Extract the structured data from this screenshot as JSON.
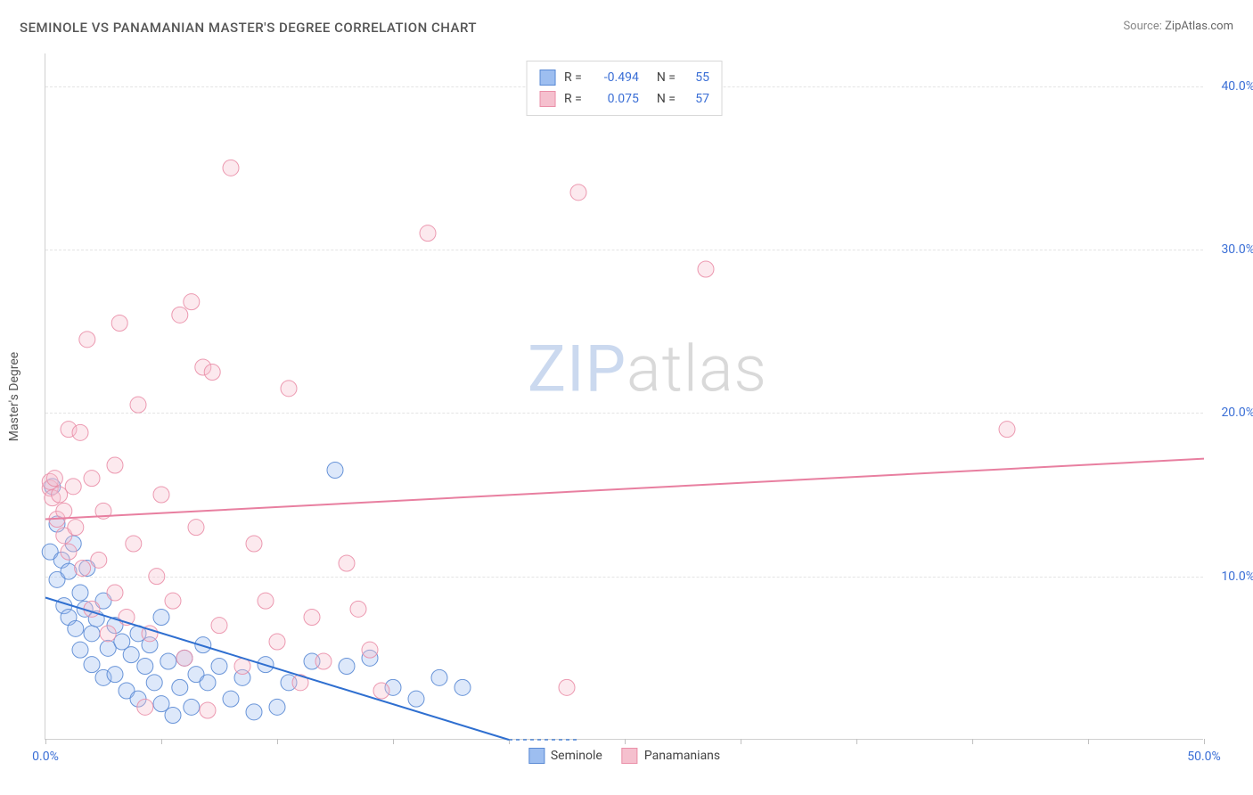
{
  "title": "SEMINOLE VS PANAMANIAN MASTER'S DEGREE CORRELATION CHART",
  "source_label": "Source:",
  "source_value": "ZipAtlas.com",
  "ylabel": "Master's Degree",
  "watermark_p1": "ZIP",
  "watermark_p2": "atlas",
  "chart": {
    "type": "scatter",
    "xlim": [
      0,
      50
    ],
    "ylim": [
      0,
      42
    ],
    "xtick_positions": [
      0,
      5,
      10,
      15,
      20,
      25,
      30,
      35,
      40,
      45,
      50
    ],
    "xtick_labels_visible": {
      "0": "0.0%",
      "50": "50.0%"
    },
    "ytick_positions": [
      10,
      20,
      30,
      40
    ],
    "ytick_labels": [
      "10.0%",
      "20.0%",
      "30.0%",
      "40.0%"
    ],
    "grid_color": "#e4e4e4",
    "axis_color": "#d0d0d0",
    "background_color": "#ffffff",
    "tick_label_color": "#3b6fd6",
    "marker_radius": 9,
    "marker_fill_opacity": 0.35,
    "marker_stroke_opacity": 0.9,
    "line_width": 2,
    "series": [
      {
        "name": "Seminole",
        "color_fill": "#9dbef0",
        "color_stroke": "#5a8ad4",
        "line_color": "#2f6fd0",
        "R": "-0.494",
        "N": "55",
        "trend": {
          "x1": 0,
          "y1": 8.7,
          "x2": 20,
          "y2": 0,
          "dash_extend_to_x": 23
        },
        "points": [
          [
            0.2,
            11.5
          ],
          [
            0.3,
            15.5
          ],
          [
            0.5,
            13.2
          ],
          [
            0.5,
            9.8
          ],
          [
            0.7,
            11.0
          ],
          [
            0.8,
            8.2
          ],
          [
            1.0,
            10.3
          ],
          [
            1.0,
            7.5
          ],
          [
            1.2,
            12.0
          ],
          [
            1.3,
            6.8
          ],
          [
            1.5,
            9.0
          ],
          [
            1.5,
            5.5
          ],
          [
            1.7,
            8.0
          ],
          [
            1.8,
            10.5
          ],
          [
            2.0,
            6.5
          ],
          [
            2.0,
            4.6
          ],
          [
            2.2,
            7.4
          ],
          [
            2.5,
            8.5
          ],
          [
            2.5,
            3.8
          ],
          [
            2.7,
            5.6
          ],
          [
            3.0,
            7.0
          ],
          [
            3.0,
            4.0
          ],
          [
            3.3,
            6.0
          ],
          [
            3.5,
            3.0
          ],
          [
            3.7,
            5.2
          ],
          [
            4.0,
            6.5
          ],
          [
            4.0,
            2.5
          ],
          [
            4.3,
            4.5
          ],
          [
            4.5,
            5.8
          ],
          [
            4.7,
            3.5
          ],
          [
            5.0,
            7.5
          ],
          [
            5.0,
            2.2
          ],
          [
            5.3,
            4.8
          ],
          [
            5.5,
            1.5
          ],
          [
            5.8,
            3.2
          ],
          [
            6.0,
            5.0
          ],
          [
            6.3,
            2.0
          ],
          [
            6.5,
            4.0
          ],
          [
            6.8,
            5.8
          ],
          [
            7.0,
            3.5
          ],
          [
            7.5,
            4.5
          ],
          [
            8.0,
            2.5
          ],
          [
            8.5,
            3.8
          ],
          [
            9.0,
            1.7
          ],
          [
            9.5,
            4.6
          ],
          [
            10.0,
            2.0
          ],
          [
            10.5,
            3.5
          ],
          [
            11.5,
            4.8
          ],
          [
            12.5,
            16.5
          ],
          [
            13.0,
            4.5
          ],
          [
            14.0,
            5.0
          ],
          [
            15.0,
            3.2
          ],
          [
            16.0,
            2.5
          ],
          [
            17.0,
            3.8
          ],
          [
            18.0,
            3.2
          ]
        ]
      },
      {
        "name": "Panamanians",
        "color_fill": "#f5c0ce",
        "color_stroke": "#ea8fa8",
        "line_color": "#e87fa0",
        "R": "0.075",
        "N": "57",
        "trend": {
          "x1": 0,
          "y1": 13.5,
          "x2": 50,
          "y2": 17.2
        },
        "points": [
          [
            0.2,
            15.4
          ],
          [
            0.2,
            15.8
          ],
          [
            0.3,
            14.8
          ],
          [
            0.4,
            16.0
          ],
          [
            0.5,
            13.5
          ],
          [
            0.6,
            15.0
          ],
          [
            0.8,
            12.5
          ],
          [
            0.8,
            14.0
          ],
          [
            1.0,
            19.0
          ],
          [
            1.0,
            11.5
          ],
          [
            1.2,
            15.5
          ],
          [
            1.3,
            13.0
          ],
          [
            1.5,
            18.8
          ],
          [
            1.6,
            10.5
          ],
          [
            1.8,
            24.5
          ],
          [
            2.0,
            16.0
          ],
          [
            2.0,
            8.0
          ],
          [
            2.3,
            11.0
          ],
          [
            2.5,
            14.0
          ],
          [
            2.7,
            6.5
          ],
          [
            3.0,
            16.8
          ],
          [
            3.0,
            9.0
          ],
          [
            3.2,
            25.5
          ],
          [
            3.5,
            7.5
          ],
          [
            3.8,
            12.0
          ],
          [
            4.0,
            20.5
          ],
          [
            4.3,
            2.0
          ],
          [
            4.5,
            6.5
          ],
          [
            4.8,
            10.0
          ],
          [
            5.0,
            15.0
          ],
          [
            5.5,
            8.5
          ],
          [
            5.8,
            26.0
          ],
          [
            6.0,
            5.0
          ],
          [
            6.3,
            26.8
          ],
          [
            6.5,
            13.0
          ],
          [
            6.8,
            22.8
          ],
          [
            7.0,
            1.8
          ],
          [
            7.2,
            22.5
          ],
          [
            7.5,
            7.0
          ],
          [
            8.0,
            35.0
          ],
          [
            8.5,
            4.5
          ],
          [
            9.0,
            12.0
          ],
          [
            9.5,
            8.5
          ],
          [
            10.0,
            6.0
          ],
          [
            10.5,
            21.5
          ],
          [
            11.0,
            3.5
          ],
          [
            11.5,
            7.5
          ],
          [
            12.0,
            4.8
          ],
          [
            13.0,
            10.8
          ],
          [
            13.5,
            8.0
          ],
          [
            14.0,
            5.5
          ],
          [
            14.5,
            3.0
          ],
          [
            16.5,
            31.0
          ],
          [
            22.5,
            3.2
          ],
          [
            23.0,
            33.5
          ],
          [
            28.5,
            28.8
          ],
          [
            41.5,
            19.0
          ]
        ]
      }
    ]
  },
  "legend_bottom": [
    {
      "label": "Seminole",
      "fill": "#9dbef0",
      "stroke": "#5a8ad4"
    },
    {
      "label": "Panamanians",
      "fill": "#f5c0ce",
      "stroke": "#ea8fa8"
    }
  ]
}
